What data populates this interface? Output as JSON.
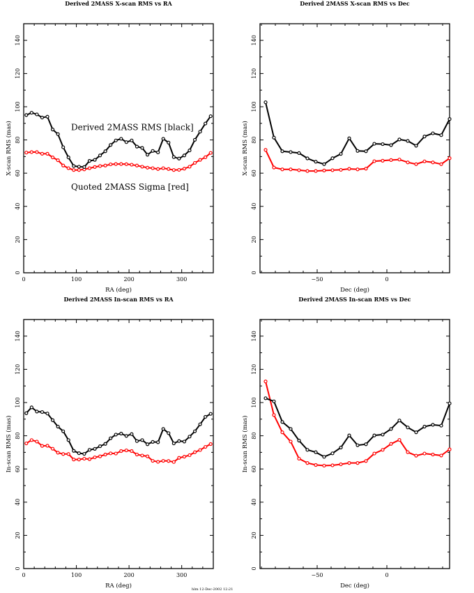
{
  "footer": "hlm 12-Dec-2002 12:21",
  "colors": {
    "derived": "#000000",
    "quoted": "#ff0000"
  },
  "chart_data": [
    {
      "type": "line",
      "title": "Derived 2MASS X-scan RMS vs RA",
      "xlabel": "RA (deg)",
      "ylabel": "X-scan RMS (mas)",
      "xlim": [
        0,
        360
      ],
      "ylim": [
        0,
        150
      ],
      "xticks": [
        0,
        100,
        200,
        300
      ],
      "yticks": [
        0,
        20,
        40,
        60,
        80,
        100,
        120,
        140
      ],
      "annotations": [
        {
          "text": "Derived 2MASS RMS [black]",
          "x": 90,
          "y": 86
        },
        {
          "text": "Quoted 2MASS Sigma [red]",
          "x": 90,
          "y": 50
        }
      ],
      "x": [
        5,
        15,
        25,
        35,
        45,
        55,
        65,
        75,
        85,
        95,
        105,
        115,
        125,
        135,
        145,
        155,
        165,
        175,
        185,
        195,
        205,
        215,
        225,
        235,
        245,
        255,
        265,
        275,
        285,
        295,
        305,
        315,
        325,
        335,
        345,
        355
      ],
      "series": [
        {
          "name": "Derived 2MASS RMS",
          "color": "black",
          "values": [
            95,
            96.4,
            95.4,
            93.5,
            94,
            86.3,
            83.5,
            75.6,
            69.5,
            64.3,
            63.9,
            63.7,
            67.4,
            68,
            70.7,
            73.2,
            77,
            79.7,
            80.7,
            78.7,
            79.7,
            76,
            75.2,
            71.1,
            73.4,
            72.5,
            80.7,
            78.4,
            69.7,
            68.8,
            70.7,
            73.7,
            80.1,
            85,
            89.9,
            94.3
          ]
        },
        {
          "name": "Quoted 2MASS Sigma",
          "color": "red",
          "values": [
            72.4,
            72.7,
            72.7,
            71.7,
            71.7,
            69.5,
            67.8,
            64.6,
            63,
            61.9,
            61.9,
            62.3,
            63,
            63.7,
            64.3,
            64.6,
            65.3,
            65.5,
            65.5,
            65.4,
            65.1,
            64.6,
            63.9,
            63.3,
            63,
            62.5,
            63,
            62.5,
            61.9,
            62,
            62.7,
            63.9,
            66.2,
            68,
            69.6,
            72.2
          ]
        }
      ]
    },
    {
      "type": "line",
      "title": "Derived 2MASS X-scan RMS vs Dec",
      "xlabel": "Dec (deg)",
      "ylabel": "X-scan RMS (mas)",
      "xlim": [
        -91,
        45
      ],
      "ylim": [
        0,
        150
      ],
      "xticks": [
        -50,
        0
      ],
      "yticks": [
        0,
        20,
        40,
        60,
        80,
        100,
        120,
        140
      ],
      "annotations": [],
      "x": [
        -87,
        -81,
        -75,
        -69,
        -63,
        -57,
        -51,
        -45,
        -39,
        -33,
        -27,
        -21,
        -15,
        -9,
        -3,
        3,
        9,
        15,
        21,
        27,
        33,
        39,
        45
      ],
      "series": [
        {
          "name": "Derived 2MASS RMS",
          "color": "black",
          "values": [
            102.7,
            81.4,
            73.2,
            72.7,
            72.1,
            68.9,
            66.9,
            65.4,
            69,
            71.6,
            81,
            73.4,
            73.2,
            77.7,
            77.5,
            76.9,
            80.3,
            79.4,
            76.5,
            82.1,
            84,
            82.9,
            92.6
          ]
        },
        {
          "name": "Quoted 2MASS Sigma",
          "color": "red",
          "values": [
            74,
            63.4,
            62.3,
            62.3,
            61.8,
            61.3,
            61.3,
            61.6,
            61.8,
            62,
            62.6,
            62.3,
            62.7,
            67.2,
            67.5,
            67.9,
            68.2,
            66.5,
            65.4,
            67.1,
            66.5,
            65.4,
            69
          ]
        }
      ]
    },
    {
      "type": "line",
      "title": "Derived 2MASS In-scan RMS vs RA",
      "xlabel": "RA (deg)",
      "ylabel": "In-scan RMS (mas)",
      "xlim": [
        0,
        360
      ],
      "ylim": [
        0,
        150
      ],
      "xticks": [
        0,
        100,
        200,
        300
      ],
      "yticks": [
        0,
        20,
        40,
        60,
        80,
        100,
        120,
        140
      ],
      "annotations": [],
      "x": [
        5,
        15,
        25,
        35,
        45,
        55,
        65,
        75,
        85,
        95,
        105,
        115,
        125,
        135,
        145,
        155,
        165,
        175,
        185,
        195,
        205,
        215,
        225,
        235,
        245,
        255,
        265,
        275,
        285,
        295,
        305,
        315,
        325,
        335,
        345,
        355
      ],
      "series": [
        {
          "name": "Derived 2MASS RMS",
          "color": "black",
          "values": [
            93.6,
            97.1,
            94.6,
            94.3,
            93.4,
            89.4,
            85.5,
            82.7,
            77.4,
            70.9,
            69.5,
            69.1,
            71.5,
            72.1,
            73.7,
            75.1,
            78.5,
            80.7,
            81.3,
            79.9,
            81,
            76.8,
            77.4,
            74.9,
            76.3,
            76.1,
            84.1,
            81.6,
            75.4,
            76.8,
            76.5,
            79.5,
            82.7,
            86.9,
            91.4,
            93.2
          ]
        },
        {
          "name": "Quoted 2MASS Sigma",
          "color": "red",
          "values": [
            75.4,
            77.4,
            76.5,
            73.9,
            74,
            72.2,
            69.8,
            69,
            69,
            65.7,
            65.7,
            66.2,
            65.9,
            67,
            67.6,
            68.7,
            69.4,
            69.3,
            70.8,
            71.2,
            70.8,
            68.7,
            68.1,
            67.6,
            64.9,
            64.3,
            64.9,
            64.8,
            64.2,
            66.7,
            67.4,
            68.3,
            70.1,
            71.4,
            73.3,
            75
          ]
        }
      ]
    },
    {
      "type": "line",
      "title": "Derived 2MASS In-scan RMS vs Dec",
      "xlabel": "Dec (deg)",
      "ylabel": "In-scan RMS (mas)",
      "xlim": [
        -91,
        45
      ],
      "ylim": [
        0,
        150
      ],
      "xticks": [
        -50,
        0
      ],
      "yticks": [
        0,
        20,
        40,
        60,
        80,
        100,
        120,
        140
      ],
      "annotations": [],
      "x": [
        -87,
        -81,
        -75,
        -69,
        -63,
        -57,
        -51,
        -45,
        -39,
        -33,
        -27,
        -21,
        -15,
        -9,
        -3,
        3,
        9,
        15,
        21,
        27,
        33,
        39,
        45
      ],
      "series": [
        {
          "name": "Derived 2MASS RMS",
          "color": "black",
          "values": [
            102.6,
            100.7,
            88.3,
            84.1,
            77.1,
            71.5,
            70.1,
            67.3,
            69.4,
            72.9,
            80.2,
            74.3,
            74.9,
            80.2,
            80.7,
            84.1,
            89.2,
            85,
            82.1,
            85.5,
            86.6,
            86.1,
            99.5
          ]
        },
        {
          "name": "Quoted 2MASS Sigma",
          "color": "red",
          "values": [
            112.7,
            92.5,
            82.1,
            76.5,
            66.2,
            63.6,
            62.4,
            62,
            62.2,
            62.8,
            63.6,
            63.6,
            64.8,
            69.3,
            71.5,
            75.1,
            77.5,
            70.1,
            68,
            69.3,
            68.7,
            68.1,
            71.8
          ]
        }
      ]
    }
  ]
}
